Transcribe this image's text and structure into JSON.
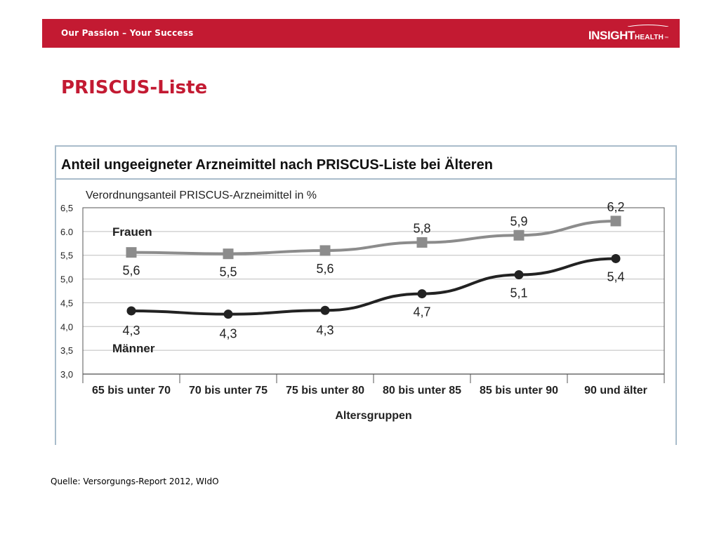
{
  "header": {
    "tagline": "Our Passion – Your Success",
    "logo_insight": "INSIGHT",
    "logo_health": "HEALTH",
    "logo_tm": "™",
    "bar_color": "#c31a32"
  },
  "page": {
    "title": "PRISCUS-Liste"
  },
  "chart_data": {
    "type": "line",
    "title": "Anteil ungeeigneter Arzneimittel nach PRISCUS-Liste bei Älteren",
    "ylabel": "Verordnungsanteil PRISCUS-Arzneimittel in %",
    "xlabel": "Altersgruppen",
    "categories": [
      "65 bis unter 70",
      "70 bis unter 75",
      "75 bis unter 80",
      "80 bis unter 85",
      "85 bis unter 90",
      "90 und älter"
    ],
    "ylim": [
      3.0,
      6.5
    ],
    "yticks": [
      "3,0",
      "3,5",
      "4,0",
      "4,5",
      "5,0",
      "5,5",
      "6.0",
      "6,5"
    ],
    "grid": true,
    "series": [
      {
        "name": "Frauen",
        "values": [
          5.56,
          5.53,
          5.6,
          5.77,
          5.92,
          6.22
        ],
        "labels": [
          "5,6",
          "5,5",
          "5,6",
          "5,8",
          "5,9",
          "6,2"
        ],
        "color": "#8c8c8c",
        "marker": "square"
      },
      {
        "name": "Männer",
        "values": [
          4.33,
          4.26,
          4.34,
          4.69,
          5.09,
          5.43
        ],
        "labels": [
          "4,3",
          "4,3",
          "4,3",
          "4,7",
          "5,1",
          "5,4"
        ],
        "color": "#222222",
        "marker": "circle"
      }
    ]
  },
  "footer": {
    "source": "Quelle: Versorgungs-Report 2012, WIdO"
  }
}
